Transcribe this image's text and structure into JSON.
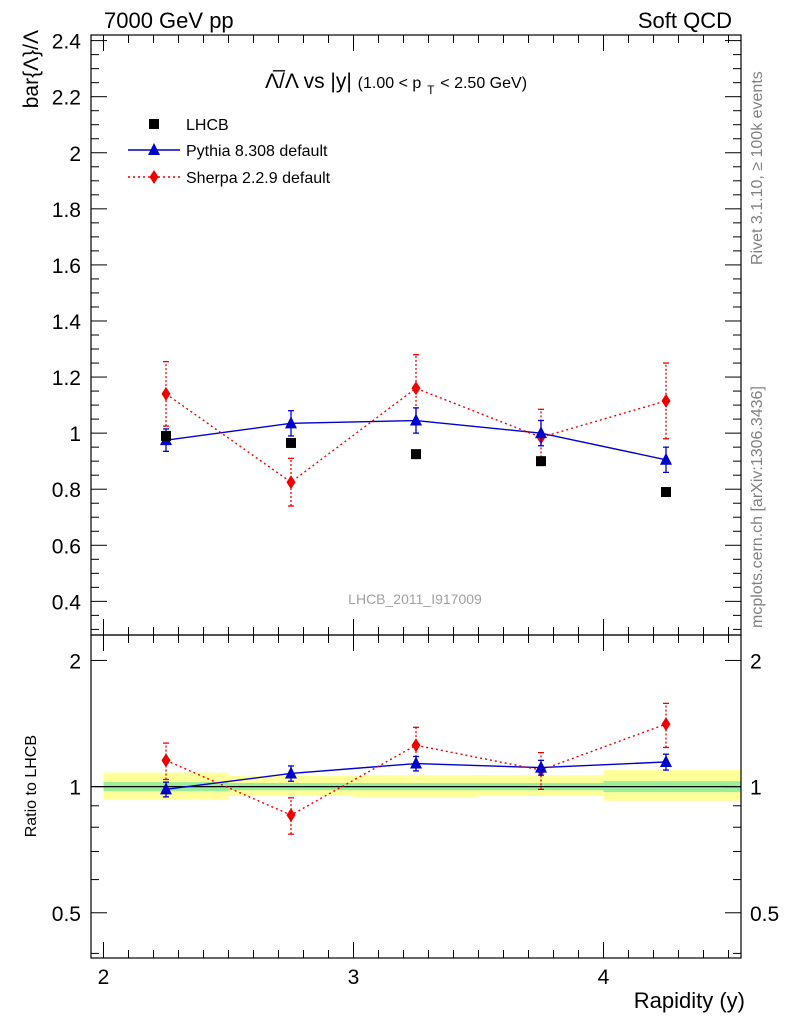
{
  "header": {
    "left": "7000 GeV pp",
    "right": "Soft QCD"
  },
  "side": {
    "rivet": "Rivet 3.1.10, ≥ 100k events",
    "mcplots": "mcplots.cern.ch [arXiv:1306.3436]"
  },
  "chart_data": {
    "type": "scatter",
    "title_main": "Λ̅/Λ vs |y|",
    "title_range": "(1.00 < p",
    "title_sub": "T",
    "title_end": " < 2.50 GeV)",
    "ylabel": "bar{Λ}/Λ",
    "xlabel": "Rapidity (y)",
    "watermark": "LHCB_2011_I917009",
    "xlim": [
      1.95,
      4.55
    ],
    "ylim": [
      0.28,
      2.42
    ],
    "xticks": [
      "2",
      "3",
      "4"
    ],
    "yticks": [
      "0.4",
      "0.6",
      "0.8",
      "1",
      "1.2",
      "1.4",
      "1.6",
      "1.8",
      "2",
      "2.2",
      "2.4"
    ],
    "series": [
      {
        "name": "LHCB",
        "color": "#000000",
        "marker": "square",
        "x": [
          2.25,
          2.75,
          3.25,
          3.75,
          4.25
        ],
        "y": [
          0.99,
          0.965,
          0.925,
          0.9,
          0.79
        ]
      },
      {
        "name": "Pythia 8.308 default",
        "color": "#0000cc",
        "marker": "triangle",
        "x": [
          2.25,
          2.75,
          3.25,
          3.75,
          4.25
        ],
        "y": [
          0.975,
          1.035,
          1.045,
          1.0,
          0.905
        ],
        "err": [
          0.04,
          0.045,
          0.045,
          0.045,
          0.045
        ]
      },
      {
        "name": "Sherpa 2.2.9 default",
        "color": "#ee0000",
        "marker": "diamond",
        "x": [
          2.25,
          2.75,
          3.25,
          3.75,
          4.25
        ],
        "y": [
          1.14,
          0.825,
          1.16,
          0.985,
          1.115
        ],
        "err": [
          0.115,
          0.085,
          0.12,
          0.1,
          0.135
        ]
      }
    ],
    "ratio": {
      "ylabel": "Ratio to LHCB",
      "ylim": [
        0.39,
        2.3
      ],
      "yticks": [
        "0.5",
        "1",
        "2"
      ],
      "bands": [
        {
          "x": [
            2.0,
            2.5
          ],
          "green": [
            0.975,
            1.025
          ],
          "yellow": [
            0.93,
            1.08
          ]
        },
        {
          "x": [
            2.5,
            3.0
          ],
          "green": [
            0.98,
            1.02
          ],
          "yellow": [
            0.95,
            1.06
          ]
        },
        {
          "x": [
            3.0,
            3.5
          ],
          "green": [
            0.98,
            1.02
          ],
          "yellow": [
            0.945,
            1.065
          ]
        },
        {
          "x": [
            3.5,
            4.0
          ],
          "green": [
            0.98,
            1.02
          ],
          "yellow": [
            0.95,
            1.065
          ]
        },
        {
          "x": [
            4.0,
            4.55
          ],
          "green": [
            0.97,
            1.03
          ],
          "yellow": [
            0.925,
            1.095
          ]
        }
      ],
      "pythia": [
        0.985,
        1.075,
        1.135,
        1.11,
        1.145
      ],
      "pythia_err": [
        0.04,
        0.045,
        0.045,
        0.045,
        0.05
      ],
      "sherpa": [
        1.155,
        0.855,
        1.255,
        1.095,
        1.41
      ],
      "sherpa_err": [
        0.115,
        0.085,
        0.13,
        0.11,
        0.17
      ]
    }
  }
}
